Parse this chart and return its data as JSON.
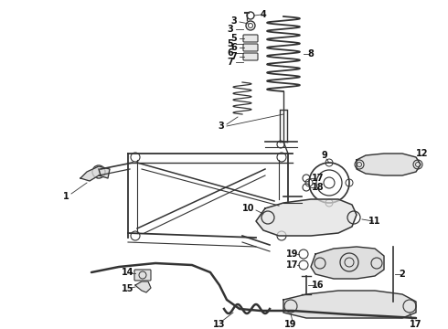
{
  "bg_color": "#ffffff",
  "line_color": "#333333",
  "label_color": "#111111",
  "fig_width": 4.9,
  "fig_height": 3.6,
  "dpi": 100
}
